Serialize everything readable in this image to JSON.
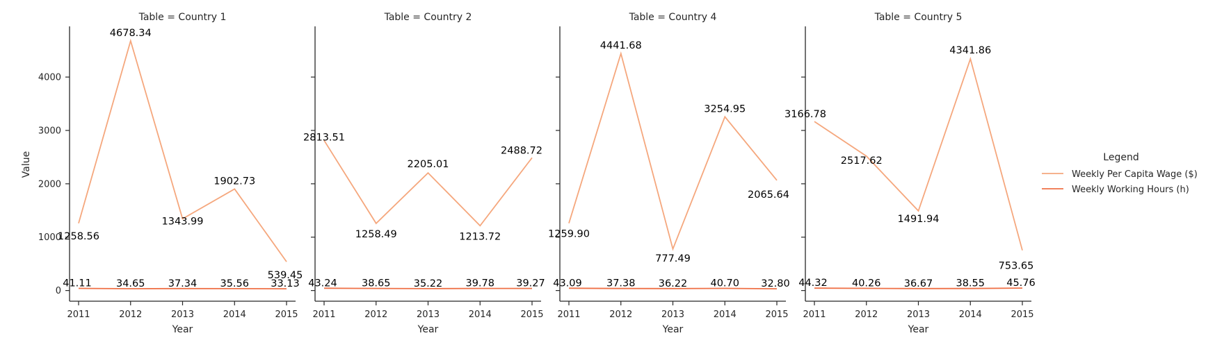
{
  "chart_data": {
    "type": "line",
    "facet_variable": "Table",
    "xlabel": "Year",
    "ylabel": "Value",
    "x": [
      2011,
      2012,
      2013,
      2014,
      2015
    ],
    "ylim": [
      -200,
      4950
    ],
    "yticks": [
      0,
      1000,
      2000,
      3000,
      4000
    ],
    "legend": {
      "title": "Legend",
      "placement": "right"
    },
    "series_styles": [
      {
        "name": "Weekly Per Capita Wage ($)",
        "color": "#f5a77d"
      },
      {
        "name": "Weekly Working Hours (h)",
        "color": "#ef7046"
      }
    ],
    "facets": [
      {
        "title": "Table = Country 1",
        "series": [
          {
            "name": "Weekly Per Capita Wage ($)",
            "values": [
              1258.56,
              4678.34,
              1343.99,
              1902.73,
              539.45
            ],
            "labels": [
              "1258.56",
              "4678.34",
              "1343.99",
              "1902.73",
              "539.45"
            ]
          },
          {
            "name": "Weekly Working Hours (h)",
            "values": [
              41.11,
              34.65,
              37.34,
              35.56,
              33.13
            ],
            "labels": [
              "41.11",
              "34.65",
              "37.34",
              "35.56",
              "33.13"
            ]
          }
        ]
      },
      {
        "title": "Table = Country 2",
        "series": [
          {
            "name": "Weekly Per Capita Wage ($)",
            "values": [
              2813.51,
              1258.49,
              2205.01,
              1213.72,
              2488.72
            ],
            "labels": [
              "2813.51",
              "1258.49",
              "2205.01",
              "1213.72",
              "2488.72"
            ]
          },
          {
            "name": "Weekly Working Hours (h)",
            "values": [
              43.24,
              38.65,
              35.22,
              39.78,
              39.27
            ],
            "labels": [
              "43.24",
              "38.65",
              "35.22",
              "39.78",
              "39.27"
            ]
          }
        ]
      },
      {
        "title": "Table = Country 4",
        "series": [
          {
            "name": "Weekly Per Capita Wage ($)",
            "values": [
              1259.9,
              4441.68,
              777.49,
              3254.95,
              2065.64
            ],
            "labels": [
              "1259.90",
              "4441.68",
              "777.49",
              "3254.95",
              "2065.64"
            ]
          },
          {
            "name": "Weekly Working Hours (h)",
            "values": [
              43.09,
              37.38,
              36.22,
              40.7,
              32.8
            ],
            "labels": [
              "43.09",
              "37.38",
              "36.22",
              "40.70",
              "32.80"
            ]
          }
        ]
      },
      {
        "title": "Table = Country 5",
        "series": [
          {
            "name": "Weekly Per Capita Wage ($)",
            "values": [
              3166.78,
              2517.62,
              1491.94,
              4341.86,
              753.65
            ],
            "labels": [
              "3166.78",
              "2517.62",
              "1491.94",
              "4341.86",
              "753.65"
            ]
          },
          {
            "name": "Weekly Working Hours (h)",
            "values": [
              44.32,
              40.26,
              36.67,
              38.55,
              45.76
            ],
            "labels": [
              "44.32",
              "40.26",
              "36.67",
              "38.55",
              "45.76"
            ]
          }
        ]
      }
    ]
  }
}
